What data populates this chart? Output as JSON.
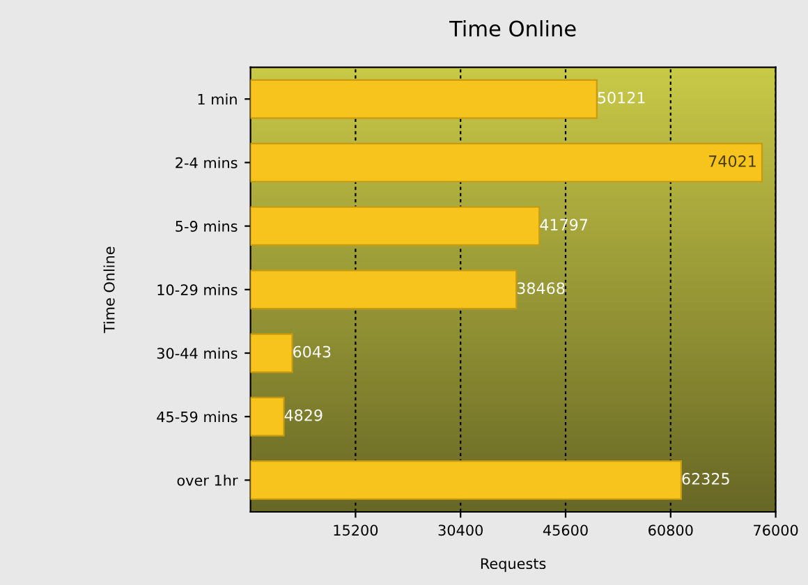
{
  "chart_data": {
    "type": "bar",
    "orientation": "horizontal",
    "title": "Time Online",
    "xlabel": "Requests",
    "ylabel": "Time Online",
    "categories": [
      "1 min",
      "2-4 mins",
      "5-9 mins",
      "10-29 mins",
      "30-44 mins",
      "45-59 mins",
      "over 1hr"
    ],
    "values": [
      50121,
      74021,
      41797,
      38468,
      6043,
      4829,
      62325
    ],
    "color": "#f6c41c",
    "xlim": [
      0,
      76000
    ],
    "xticks": [
      15200,
      30400,
      45600,
      60800,
      76000
    ],
    "grid": "x",
    "data_labels": true,
    "legend": false
  }
}
